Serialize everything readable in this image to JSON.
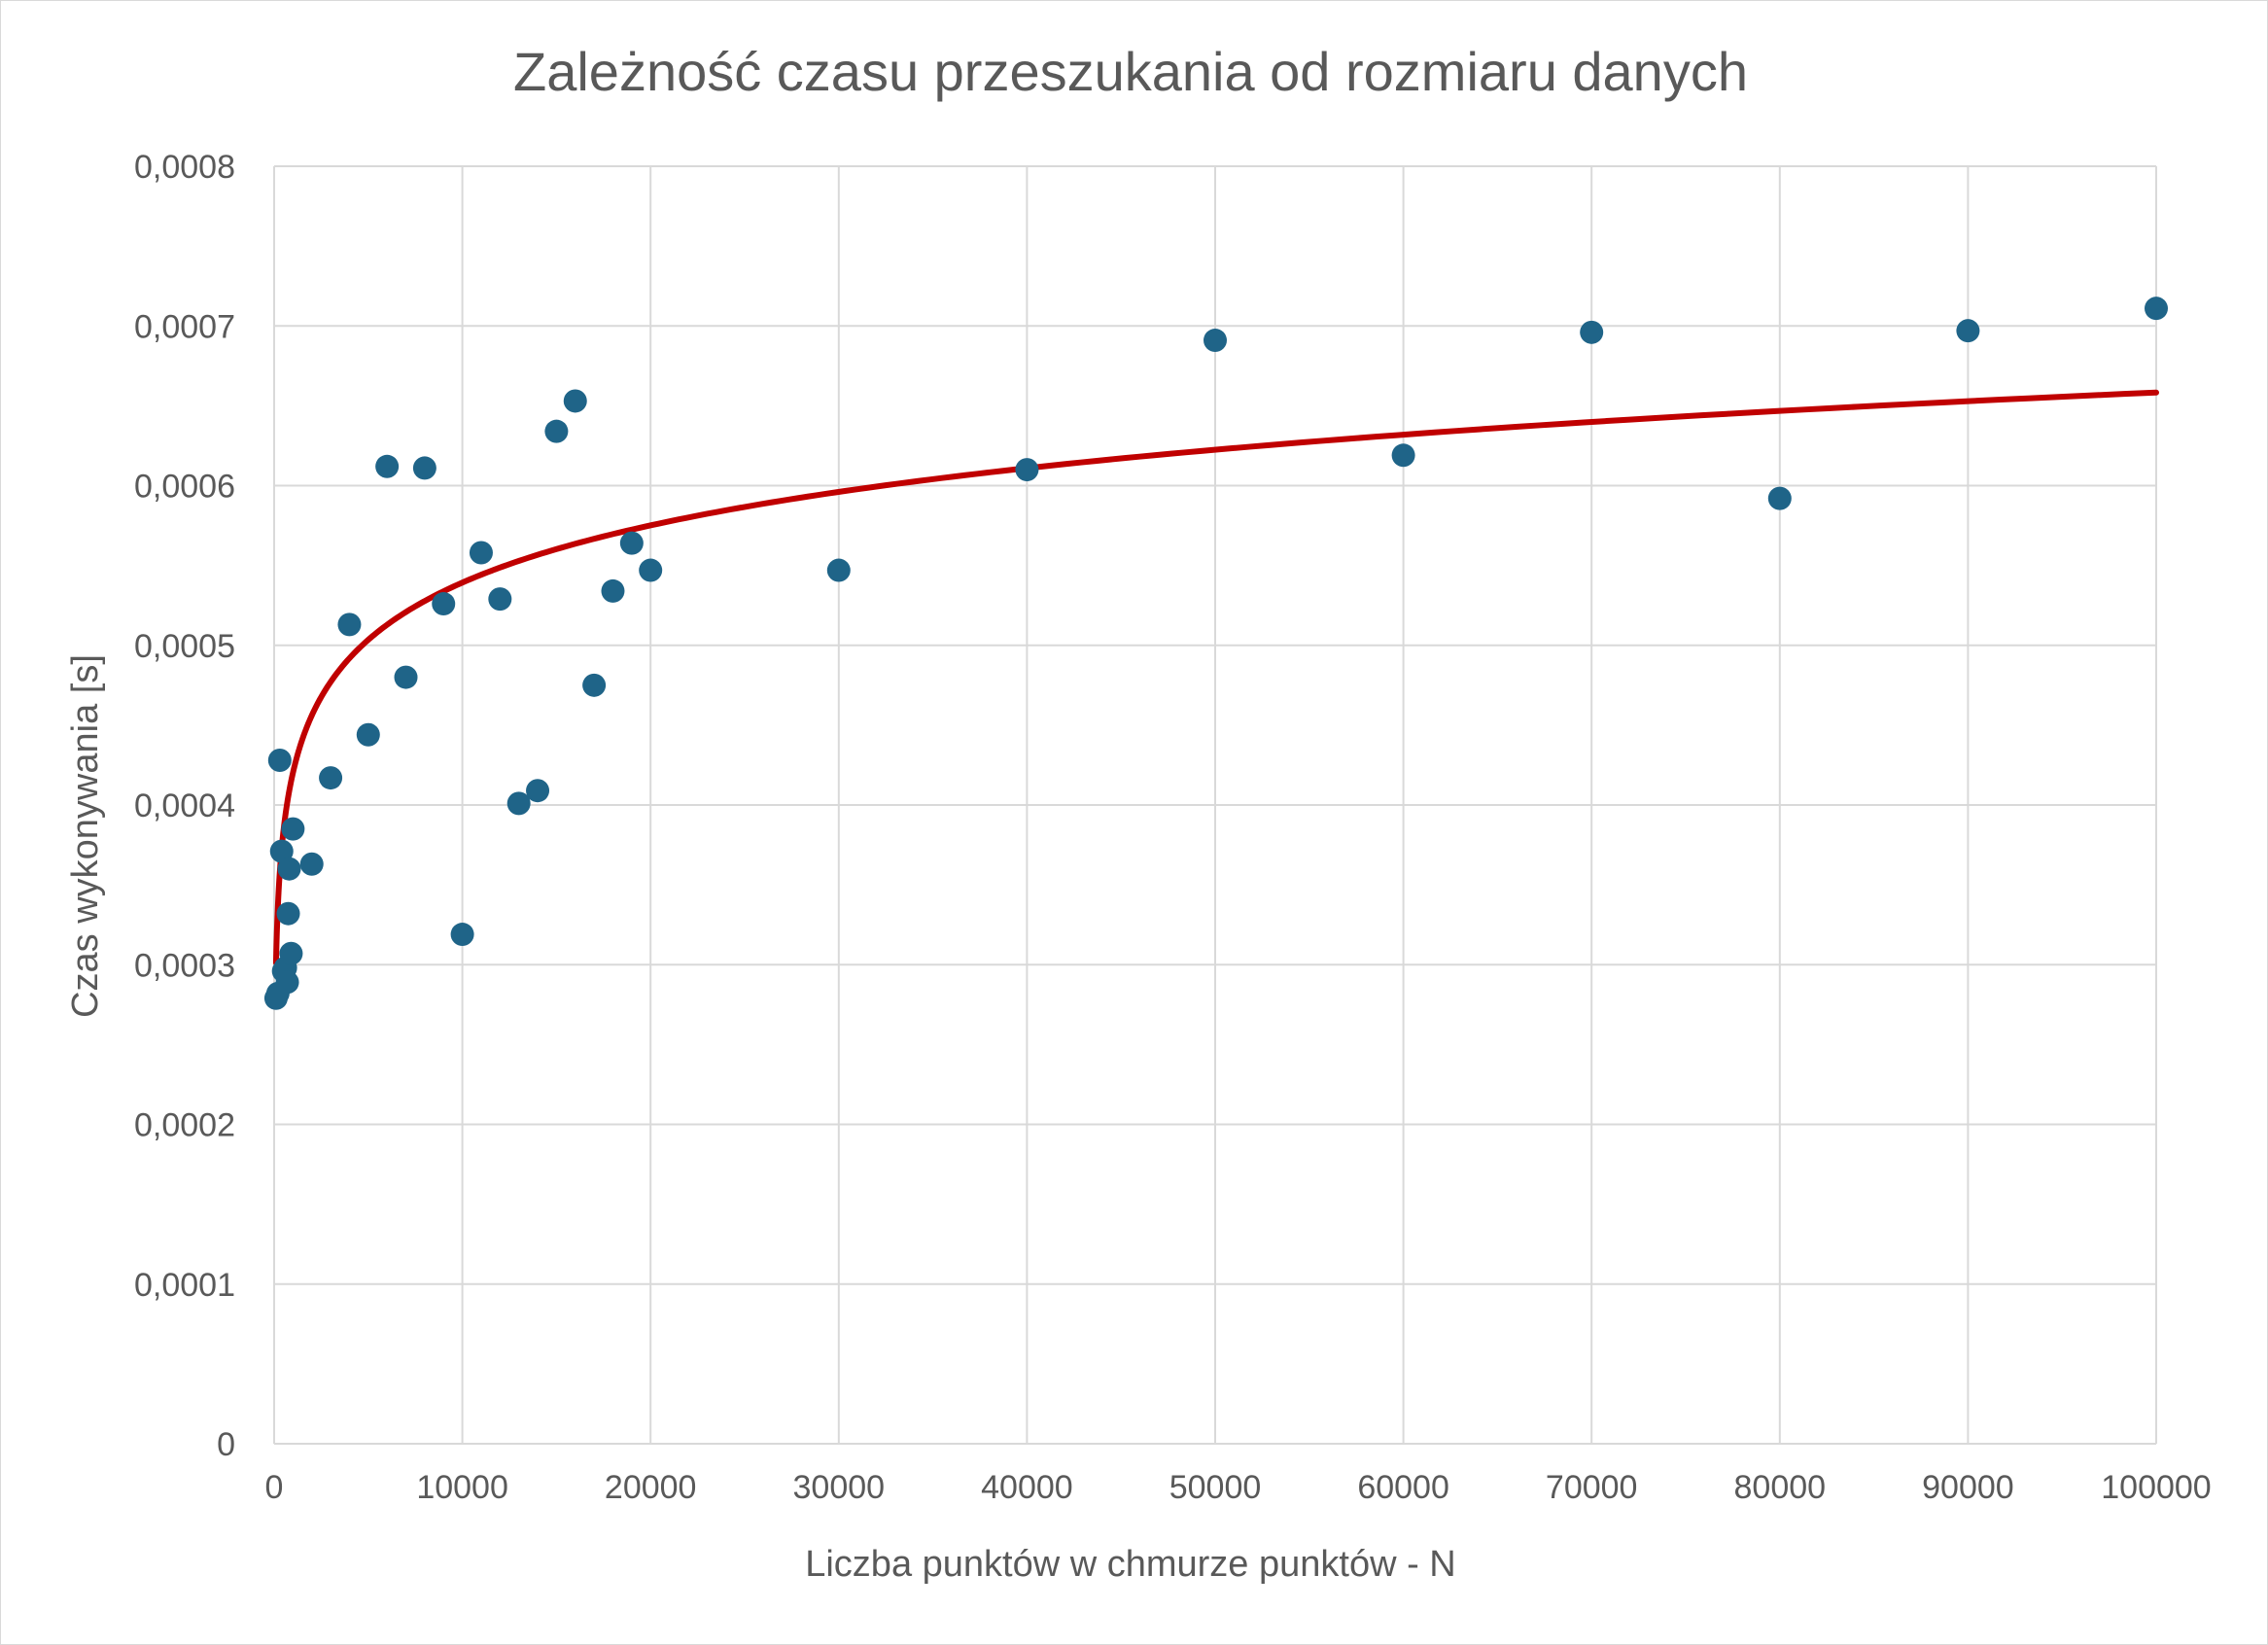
{
  "colors": {
    "marker": "#1f6488",
    "trendline": "#c00000",
    "gridline": "#d9d9d9",
    "text": "#595959"
  },
  "chart_data": {
    "type": "scatter",
    "title": "Zależność czasu przeszukania od rozmiaru danych",
    "xlabel": "Liczba punktów w chmurze punktów - N",
    "ylabel": "Czas wykonywania [s]",
    "xlim": [
      0,
      100000
    ],
    "ylim": [
      0,
      0.0008
    ],
    "grid": true,
    "legend": "none",
    "x_ticks": [
      "0",
      "10000",
      "20000",
      "30000",
      "40000",
      "50000",
      "60000",
      "70000",
      "80000",
      "90000",
      "100000"
    ],
    "y_ticks": [
      "0",
      "0,0001",
      "0,0002",
      "0,0003",
      "0,0004",
      "0,0005",
      "0,0006",
      "0,0007",
      "0,0008"
    ],
    "series": [
      {
        "points": [
          {
            "x": 100,
            "y": 0.000279
          },
          {
            "x": 200,
            "y": 0.000282
          },
          {
            "x": 300,
            "y": 0.000428
          },
          {
            "x": 400,
            "y": 0.000371
          },
          {
            "x": 500,
            "y": 0.000296
          },
          {
            "x": 600,
            "y": 0.000298
          },
          {
            "x": 700,
            "y": 0.000289
          },
          {
            "x": 750,
            "y": 0.000332
          },
          {
            "x": 800,
            "y": 0.00036
          },
          {
            "x": 900,
            "y": 0.000307
          },
          {
            "x": 1000,
            "y": 0.000385
          },
          {
            "x": 2000,
            "y": 0.000363
          },
          {
            "x": 3000,
            "y": 0.000417
          },
          {
            "x": 4000,
            "y": 0.000513
          },
          {
            "x": 5000,
            "y": 0.000444
          },
          {
            "x": 6000,
            "y": 0.000612
          },
          {
            "x": 7000,
            "y": 0.00048
          },
          {
            "x": 8000,
            "y": 0.000611
          },
          {
            "x": 9000,
            "y": 0.000526
          },
          {
            "x": 10000,
            "y": 0.000319
          },
          {
            "x": 11000,
            "y": 0.000558
          },
          {
            "x": 12000,
            "y": 0.000529
          },
          {
            "x": 13000,
            "y": 0.000401
          },
          {
            "x": 14000,
            "y": 0.000409
          },
          {
            "x": 15000,
            "y": 0.000634
          },
          {
            "x": 16000,
            "y": 0.000653
          },
          {
            "x": 17000,
            "y": 0.000475
          },
          {
            "x": 18000,
            "y": 0.000534
          },
          {
            "x": 19000,
            "y": 0.000564
          },
          {
            "x": 20000,
            "y": 0.000547
          },
          {
            "x": 30000,
            "y": 0.000547
          },
          {
            "x": 40000,
            "y": 0.00061
          },
          {
            "x": 50000,
            "y": 0.000691
          },
          {
            "x": 60000,
            "y": 0.000619
          },
          {
            "x": 70000,
            "y": 0.000696
          },
          {
            "x": 80000,
            "y": 0.000592
          },
          {
            "x": 90000,
            "y": 0.000697
          },
          {
            "x": 100000,
            "y": 0.000711
          }
        ]
      }
    ],
    "trendline": {
      "type": "logarithmic",
      "a": 5.17e-05,
      "b": 6.31e-05,
      "x_range": [
        100,
        100000
      ]
    }
  }
}
